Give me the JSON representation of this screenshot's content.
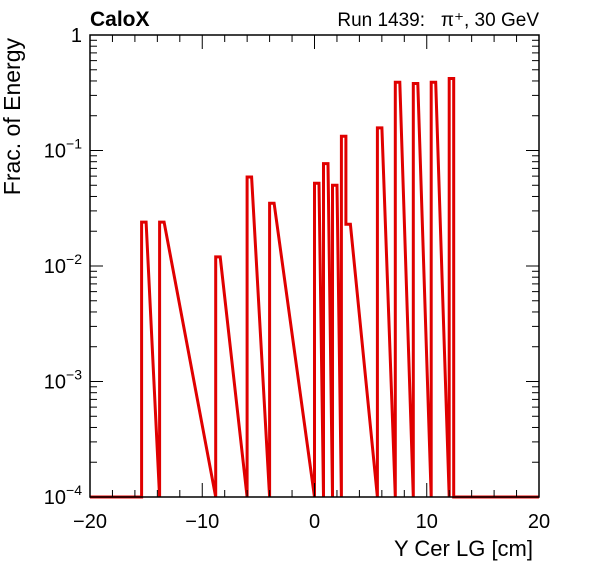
{
  "chart_data": {
    "type": "histogram",
    "experiment_label": "CaloX",
    "run_label": "Run 1439:   π⁺, 30 GeV",
    "xlabel": "Y Cer LG [cm]",
    "ylabel": "Frac. of Energy",
    "xlim": [
      -20,
      20
    ],
    "ylim": [
      0.0001,
      1
    ],
    "yscale": "log",
    "xticks": [
      "−20",
      "−10",
      "0",
      "10",
      "20"
    ],
    "yticks": [
      {
        "base": "1",
        "exp": ""
      },
      {
        "base": "10",
        "exp": "−1"
      },
      {
        "base": "10",
        "exp": "−2"
      },
      {
        "base": "10",
        "exp": "−3"
      },
      {
        "base": "10",
        "exp": "−4"
      }
    ],
    "line_color": "#e00000",
    "grid": false,
    "bars": [
      {
        "x0": -15.4,
        "x1": -15.0,
        "value": 0.024
      },
      {
        "x0": -13.8,
        "x1": -13.4,
        "value": 0.024
      },
      {
        "x0": -8.8,
        "x1": -8.4,
        "value": 0.012
      },
      {
        "x0": -6.0,
        "x1": -5.6,
        "value": 0.059
      },
      {
        "x0": -4.0,
        "x1": -3.6,
        "value": 0.035
      },
      {
        "x0": 0.0,
        "x1": 0.4,
        "value": 0.052
      },
      {
        "x0": 0.8,
        "x1": 1.2,
        "value": 0.077
      },
      {
        "x0": 1.6,
        "x1": 2.0,
        "value": 0.05
      },
      {
        "x0": 2.4,
        "x1": 2.8,
        "value": 0.133
      },
      {
        "x0": 2.8,
        "x1": 3.2,
        "value": 0.023
      },
      {
        "x0": 5.6,
        "x1": 6.0,
        "value": 0.157
      },
      {
        "x0": 7.2,
        "x1": 7.6,
        "value": 0.39
      },
      {
        "x0": 8.8,
        "x1": 9.2,
        "value": 0.38
      },
      {
        "x0": 10.4,
        "x1": 10.8,
        "value": 0.39
      },
      {
        "x0": 12.0,
        "x1": 12.4,
        "value": 0.42
      }
    ]
  }
}
